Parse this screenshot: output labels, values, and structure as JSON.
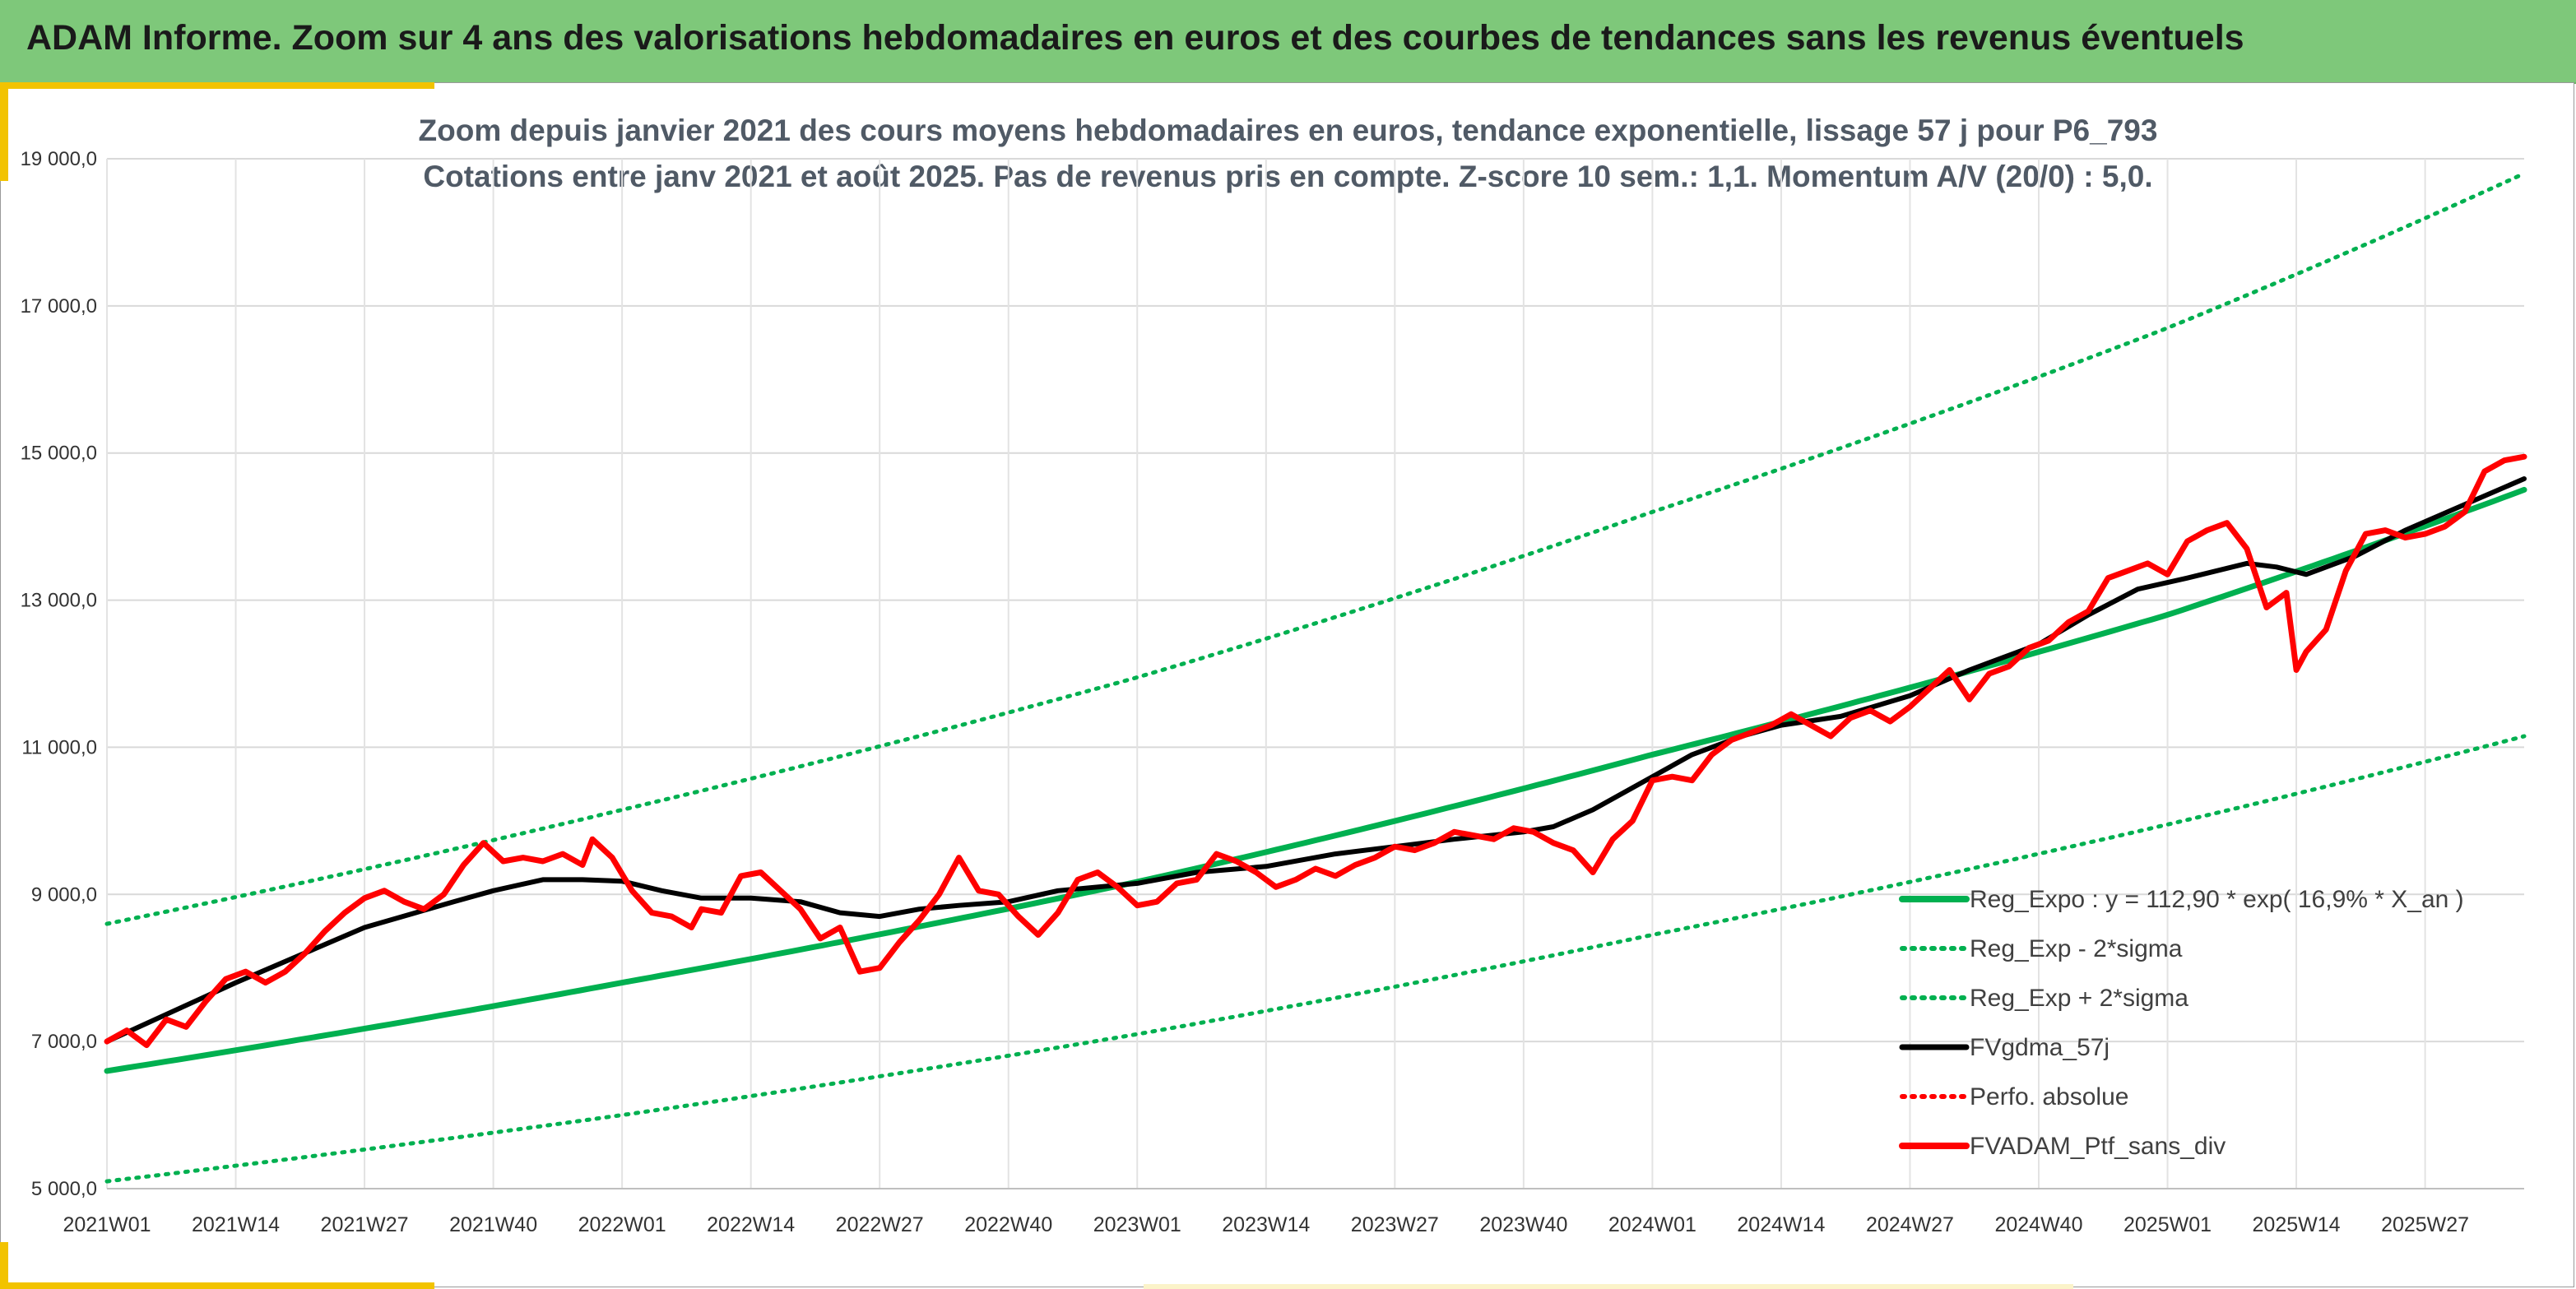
{
  "banner": {
    "title": "ADAM Informe. Zoom sur 4 ans des valorisations hebdomadaires en euros et des courbes de tendances sans les revenus éventuels"
  },
  "colors": {
    "banner": "#7ec87a",
    "accent": "#f2c300",
    "reg_expo": "#00b050",
    "fvgdma": "#000000",
    "ptf": "#ff0000"
  },
  "chart_data": {
    "type": "line",
    "title": "Zoom depuis janvier 2021 des cours moyens hebdomadaires en euros, tendance exponentielle, lissage 57 j pour P6_793",
    "subtitle": "Cotations entre janv 2021 et août 2025. Pas de revenus pris en compte. Z-score 10 sem.: 1,1. Momentum A/V (20/0) : 5,0.",
    "x_tick_labels": [
      "2021W01",
      "2021W14",
      "2021W27",
      "2021W40",
      "2022W01",
      "2022W14",
      "2022W27",
      "2022W40",
      "2023W01",
      "2023W14",
      "2023W27",
      "2023W40",
      "2024W01",
      "2024W14",
      "2024W27",
      "2024W40",
      "2025W01",
      "2025W14",
      "2025W27"
    ],
    "x_ticks_week_index": [
      0,
      13,
      26,
      39,
      52,
      65,
      78,
      91,
      104,
      117,
      130,
      143,
      156,
      169,
      182,
      195,
      208,
      221,
      234
    ],
    "x_range": [
      0,
      244
    ],
    "y_tick_labels": [
      "5 000,0",
      "7 000,0",
      "9 000,0",
      "11 000,0",
      "13 000,0",
      "15 000,0",
      "17 000,0",
      "19 000,0"
    ],
    "y_ticks": [
      5000,
      7000,
      9000,
      11000,
      13000,
      15000,
      17000,
      19000
    ],
    "ylim": [
      5000,
      19000
    ],
    "grid": true,
    "legend_position": "right",
    "series": [
      {
        "name": "Reg_Expo : y = 112,90 * exp( 16,9% *  X_an )",
        "style": "solid-thick",
        "color": "#00b050",
        "x": [
          0,
          52,
          104,
          156,
          208,
          244
        ],
        "y": [
          6600,
          7800,
          9170,
          10900,
          12800,
          14500
        ]
      },
      {
        "name": "Reg_Exp - 2*sigma",
        "style": "dotted",
        "color": "#00b050",
        "x": [
          0,
          52,
          104,
          156,
          208,
          244
        ],
        "y": [
          5100,
          6000,
          7100,
          8450,
          9950,
          11150
        ]
      },
      {
        "name": "Reg_Exp + 2*sigma",
        "style": "dotted",
        "color": "#00b050",
        "x": [
          0,
          52,
          104,
          156,
          208,
          244
        ],
        "y": [
          8600,
          10150,
          11950,
          14200,
          16700,
          18800
        ]
      },
      {
        "name": "FVgdma_57j",
        "style": "solid",
        "color": "#000000",
        "x": [
          0,
          13,
          26,
          35,
          39,
          44,
          48,
          52,
          56,
          60,
          65,
          70,
          74,
          78,
          82,
          86,
          91,
          96,
          100,
          104,
          110,
          117,
          124,
          130,
          136,
          143,
          146,
          150,
          156,
          160,
          165,
          169,
          175,
          182,
          188,
          195,
          200,
          205,
          210,
          216,
          219,
          222,
          227,
          232,
          238,
          244
        ],
        "y": [
          7000,
          7800,
          8550,
          8900,
          9050,
          9200,
          9200,
          9180,
          9050,
          8950,
          8950,
          8900,
          8750,
          8700,
          8800,
          8850,
          8900,
          9050,
          9100,
          9150,
          9300,
          9380,
          9550,
          9650,
          9750,
          9850,
          9920,
          10150,
          10600,
          10900,
          11150,
          11300,
          11420,
          11700,
          12050,
          12400,
          12800,
          13150,
          13300,
          13500,
          13450,
          13350,
          13600,
          13950,
          14300,
          14650
        ]
      },
      {
        "name": "Perfo. absolue",
        "style": "dotted",
        "color": "#ff0000",
        "x": [],
        "y": []
      },
      {
        "name": "FVADAM_Ptf_sans_div",
        "style": "solid-thick",
        "color": "#ff0000",
        "x": [
          0,
          2,
          4,
          6,
          8,
          10,
          12,
          14,
          16,
          18,
          20,
          22,
          24,
          26,
          28,
          30,
          32,
          34,
          36,
          38,
          40,
          42,
          44,
          46,
          48,
          49,
          51,
          53,
          55,
          57,
          59,
          60,
          62,
          64,
          66,
          68,
          70,
          72,
          74,
          76,
          78,
          80,
          82,
          84,
          86,
          88,
          90,
          92,
          94,
          96,
          98,
          100,
          102,
          104,
          106,
          108,
          110,
          112,
          114,
          116,
          118,
          120,
          122,
          124,
          126,
          128,
          130,
          132,
          134,
          136,
          138,
          140,
          142,
          144,
          146,
          148,
          150,
          152,
          154,
          156,
          158,
          160,
          162,
          164,
          166,
          168,
          170,
          172,
          174,
          176,
          178,
          180,
          182,
          184,
          186,
          188,
          190,
          192,
          194,
          196,
          198,
          200,
          202,
          204,
          206,
          208,
          210,
          212,
          214,
          216,
          218,
          220,
          221,
          222,
          224,
          226,
          228,
          230,
          232,
          234,
          236,
          238,
          240,
          242,
          244
        ],
        "y": [
          7000,
          7150,
          6950,
          7300,
          7200,
          7550,
          7850,
          7950,
          7800,
          7950,
          8200,
          8500,
          8750,
          8950,
          9050,
          8900,
          8800,
          9000,
          9400,
          9700,
          9450,
          9500,
          9450,
          9550,
          9400,
          9750,
          9500,
          9050,
          8750,
          8700,
          8550,
          8800,
          8750,
          9250,
          9300,
          9050,
          8800,
          8400,
          8550,
          7950,
          8000,
          8350,
          8650,
          9000,
          9500,
          9050,
          9000,
          8700,
          8450,
          8750,
          9200,
          9300,
          9100,
          8850,
          8900,
          9150,
          9200,
          9550,
          9450,
          9300,
          9100,
          9200,
          9350,
          9250,
          9400,
          9500,
          9650,
          9600,
          9700,
          9850,
          9800,
          9750,
          9900,
          9850,
          9700,
          9600,
          9300,
          9750,
          10000,
          10550,
          10600,
          10550,
          10900,
          11100,
          11200,
          11300,
          11450,
          11300,
          11150,
          11400,
          11500,
          11350,
          11550,
          11800,
          12050,
          11650,
          12000,
          12100,
          12350,
          12450,
          12700,
          12850,
          13300,
          13400,
          13500,
          13350,
          13800,
          13950,
          14050,
          13700,
          12900,
          13100,
          12050,
          12300,
          12600,
          13400,
          13900,
          13950,
          13850,
          13900,
          14000,
          14200,
          14750,
          14900,
          14950
        ]
      }
    ]
  }
}
